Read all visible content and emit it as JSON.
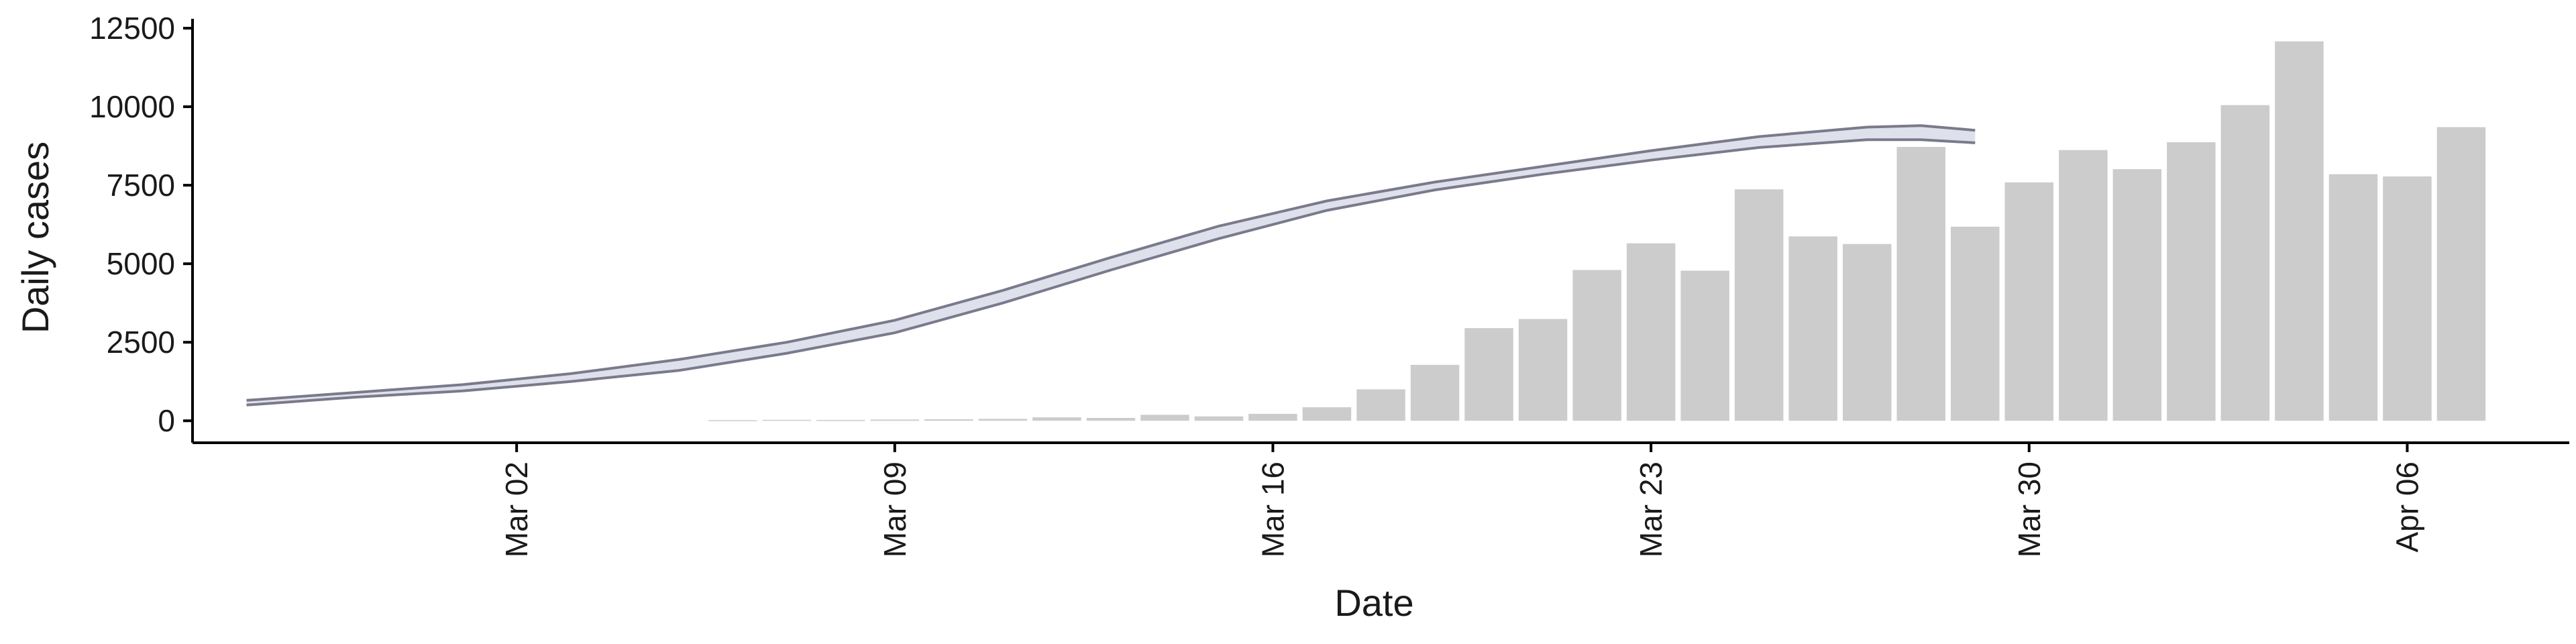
{
  "chart_data": {
    "type": "bar",
    "xlabel": "Date",
    "ylabel": "Daily cases",
    "ylim": [
      -700,
      12800
    ],
    "y_ticks": [
      0,
      2500,
      5000,
      7500,
      10000,
      12500
    ],
    "y_tick_labels": [
      "0",
      "2500",
      "5000",
      "7500",
      "10000",
      "12500"
    ],
    "x_ticks": [
      "2020-03-02",
      "2020-03-09",
      "2020-03-16",
      "2020-03-23",
      "2020-03-30",
      "2020-04-06"
    ],
    "x_tick_labels": [
      "Mar 02",
      "Mar 09",
      "Mar 16",
      "Mar 23",
      "Mar 30",
      "Apr 06"
    ],
    "xlim": [
      "2020-02-25",
      "2020-04-09"
    ],
    "grid": false,
    "bar_color": "#cccccc",
    "bars": {
      "x": [
        "2020-03-06",
        "2020-03-07",
        "2020-03-08",
        "2020-03-09",
        "2020-03-10",
        "2020-03-11",
        "2020-03-12",
        "2020-03-13",
        "2020-03-14",
        "2020-03-15",
        "2020-03-16",
        "2020-03-17",
        "2020-03-18",
        "2020-03-19",
        "2020-03-20",
        "2020-03-21",
        "2020-03-22",
        "2020-03-23",
        "2020-03-24",
        "2020-03-25",
        "2020-03-26",
        "2020-03-27",
        "2020-03-28",
        "2020-03-29",
        "2020-03-30",
        "2020-03-31",
        "2020-04-01",
        "2020-04-02",
        "2020-04-03",
        "2020-04-04",
        "2020-04-05",
        "2020-04-06",
        "2020-04-07"
      ],
      "y": [
        20,
        30,
        25,
        40,
        50,
        60,
        110,
        90,
        190,
        140,
        220,
        430,
        1000,
        1780,
        2950,
        3240,
        4800,
        5650,
        4780,
        7370,
        5870,
        5630,
        8720,
        6180,
        7590,
        8620,
        8010,
        8870,
        10050,
        12080,
        7850,
        7780,
        9350
      ]
    },
    "series": [
      {
        "type": "band",
        "color": "#7a7a8c",
        "fill": "#d8dae8",
        "x": [
          "2020-02-26",
          "2020-02-28",
          "2020-03-01",
          "2020-03-03",
          "2020-03-05",
          "2020-03-07",
          "2020-03-09",
          "2020-03-11",
          "2020-03-13",
          "2020-03-15",
          "2020-03-17",
          "2020-03-19",
          "2020-03-21",
          "2020-03-23",
          "2020-03-25",
          "2020-03-27",
          "2020-03-28",
          "2020-03-29"
        ],
        "upper": [
          650,
          900,
          1150,
          1500,
          1950,
          2500,
          3200,
          4150,
          5200,
          6200,
          7000,
          7600,
          8100,
          8600,
          9050,
          9350,
          9400,
          9250
        ],
        "lower": [
          500,
          750,
          950,
          1250,
          1600,
          2150,
          2800,
          3750,
          4800,
          5800,
          6700,
          7350,
          7850,
          8300,
          8700,
          8950,
          8950,
          8850
        ]
      }
    ]
  }
}
